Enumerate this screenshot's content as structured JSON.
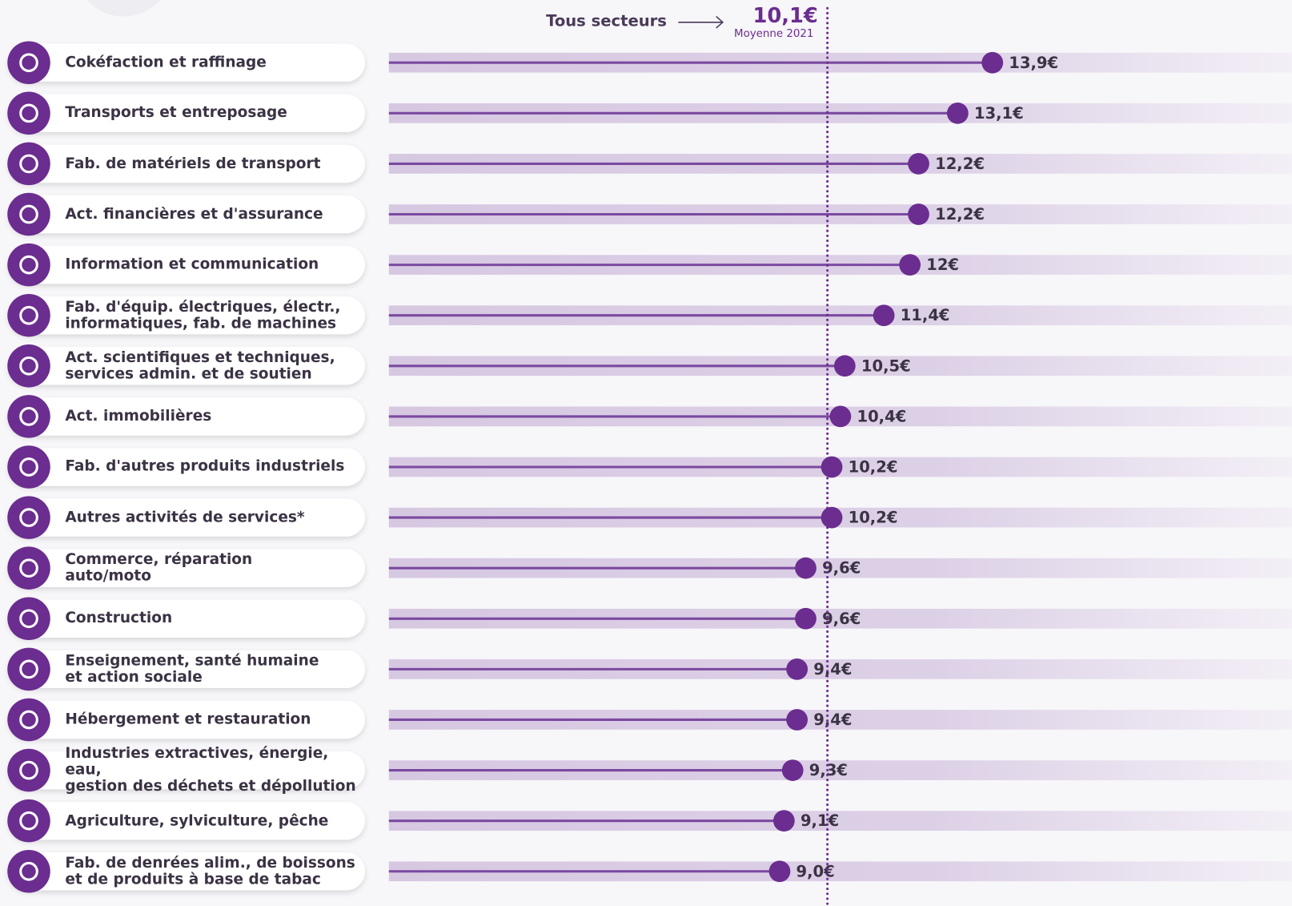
{
  "chart_data": {
    "type": "lollipop",
    "orientation": "horizontal",
    "categories": [
      "Cokéfaction et raffinage",
      "Transports et entreposage",
      "Fab. de matériels de transport",
      "Act. financières et d'assurance",
      "Information et communication",
      "Fab. d'équip. électriques, électr.,\ninformatiques, fab. de machines",
      "Act. scientifiques et techniques,\nservices admin. et de soutien",
      "Act. immobilières",
      "Fab. d'autres produits industriels",
      "Autres activités de services*",
      "Commerce, réparation\nauto/moto",
      "Construction",
      "Enseignement, santé humaine\net action sociale",
      "Hébergement et restauration",
      "Industries extractives, énergie, eau,\ngestion des déchets et dépollution",
      "Agriculture, sylviculture, pêche",
      "Fab. de denrées alim., de boissons\net de produits à base de tabac"
    ],
    "values": [
      13.9,
      13.1,
      12.2,
      12.2,
      12,
      11.4,
      10.5,
      10.4,
      10.2,
      10.2,
      9.6,
      9.6,
      9.4,
      9.4,
      9.3,
      9.1,
      9.0
    ],
    "value_labels": [
      "13,9€",
      "13,1€",
      "12,2€",
      "12,2€",
      "12€",
      "11,4€",
      "10,5€",
      "10,4€",
      "10,2€",
      "10,2€",
      "9,6€",
      "9,6€",
      "9,4€",
      "9,4€",
      "9,3€",
      "9,1€",
      "9,0€"
    ],
    "color": "#6b2d8f",
    "xlim": [
      0,
      20.8
    ],
    "average": {
      "name": "Tous secteurs",
      "value": 10.1,
      "label": "10,1€",
      "caption": "Moyenne 2021"
    }
  }
}
